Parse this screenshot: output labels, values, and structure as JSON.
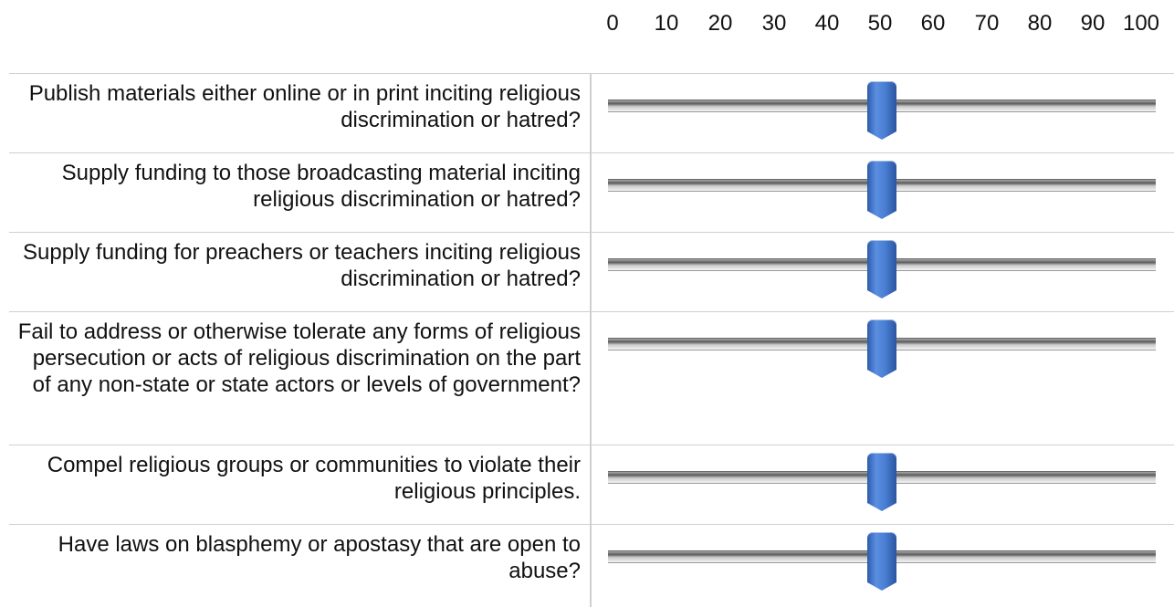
{
  "scale": {
    "ticks": [
      "0",
      "10",
      "20",
      "30",
      "40",
      "50",
      "60",
      "70",
      "80",
      "90",
      "100"
    ],
    "min": 0,
    "max": 100
  },
  "accent_color": "#4a7fd4",
  "rows": [
    {
      "label": "Publish materials either online or in print inciting religious discrimination or hatred?",
      "value": 50
    },
    {
      "label": "Supply funding to those broadcasting material inciting religious discrimination or hatred?",
      "value": 50
    },
    {
      "label": "Supply funding for preachers or teachers inciting religious discrimination or hatred?",
      "value": 50
    },
    {
      "label": "Fail to address or otherwise tolerate any forms of religious persecution or acts of religious discrimination on the part of any non-state or state actors or levels of government?",
      "value": 50
    },
    {
      "label": "Compel religious groups or communities to violate their religious principles.",
      "value": 50
    },
    {
      "label": "Have laws on blasphemy or apostasy that are open to abuse?",
      "value": 50
    }
  ]
}
